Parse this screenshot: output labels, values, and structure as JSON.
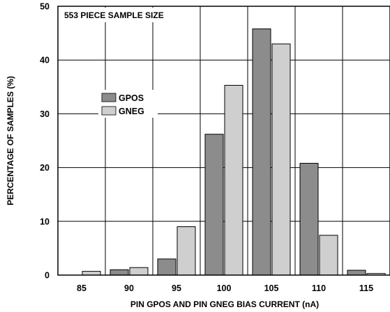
{
  "chart_data": {
    "type": "bar",
    "title": "553 PIECE SAMPLE SIZE",
    "xlabel": "PIN GPOS AND PIN GNEG BIAS CURRENT (nA)",
    "ylabel": "PERCENTAGE OF SAMPLES (%)",
    "categories": [
      "85",
      "90",
      "95",
      "100",
      "105",
      "110",
      "115"
    ],
    "ylim": [
      0,
      50
    ],
    "yticks": [
      0,
      10,
      20,
      30,
      40,
      50
    ],
    "grid": true,
    "legend_position": "left, mid-height",
    "series": [
      {
        "name": "GPOS",
        "color": "#8c8c8c",
        "values": [
          0,
          1.0,
          3.0,
          26.2,
          45.8,
          20.8,
          0.9
        ]
      },
      {
        "name": "GNEG",
        "color": "#cfcfcf",
        "values": [
          0.7,
          1.4,
          9.0,
          35.3,
          43.0,
          7.4,
          0.3
        ]
      }
    ]
  }
}
